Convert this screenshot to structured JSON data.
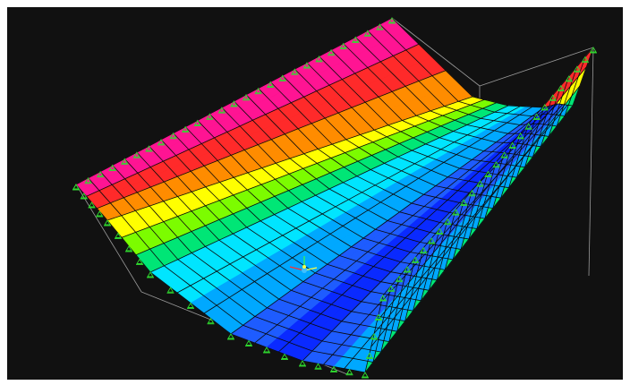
{
  "viewport": {
    "background": "#111111",
    "mesh_color": "#0a0a0a",
    "bounding_box_color": "#9a9a9a",
    "support_color": "#2fdc2f",
    "contour_palette": [
      "#ff1493",
      "#ff2a2a",
      "#ff8c00",
      "#ffff00",
      "#7cfc00",
      "#00e676",
      "#00e5ff",
      "#00a8ff",
      "#1e5cff",
      "#0a2aff"
    ]
  },
  "axis_triad": {
    "x_color": "#ff3030",
    "y_color": "#ffff40",
    "z_color": "#40ff40",
    "origin_color": "#40c0ff"
  }
}
